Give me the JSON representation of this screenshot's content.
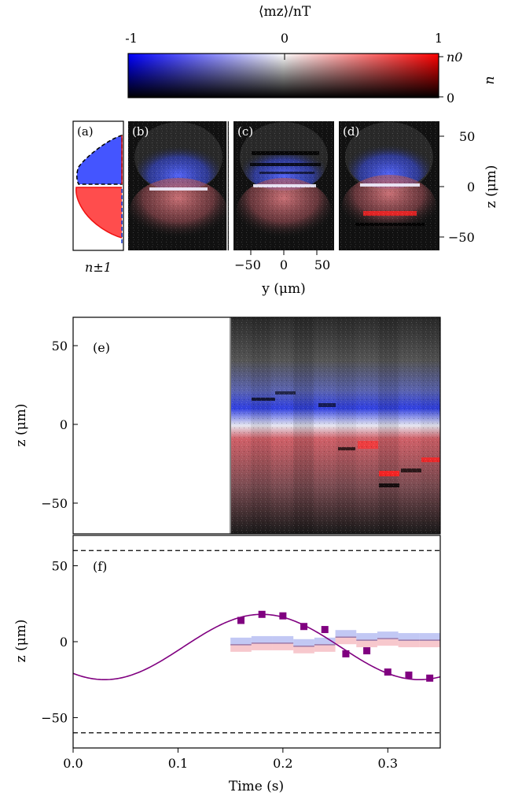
{
  "colorbar": {
    "title": "⟨mz⟩/nT",
    "tick_labels": [
      "-1",
      "0",
      "1"
    ],
    "right_labels": [
      "n0",
      "0"
    ],
    "side_label": "n"
  },
  "top_panels": {
    "labels": [
      "(a)",
      "(b)",
      "(c)",
      "(d)"
    ],
    "a_xlabel": "n±1",
    "y_ticks": [
      "50",
      "0",
      "−50"
    ],
    "y_label": "z (μm)",
    "x_ticks": [
      "−50",
      "0",
      "50"
    ],
    "x_label": "y (μm)"
  },
  "panel_e": {
    "label": "(e)",
    "y_ticks": [
      "50",
      "0",
      "−50"
    ],
    "y_label": "z (μm)"
  },
  "chart_data": {
    "type": "scatter",
    "panel_label": "(f)",
    "xlabel": "Time (s)",
    "ylabel": "z (μm)",
    "xlim": [
      0.0,
      0.35
    ],
    "ylim": [
      -70,
      70
    ],
    "x_ticks": [
      "0.0",
      "0.1",
      "0.2",
      "0.3"
    ],
    "y_ticks": [
      "50",
      "0",
      "−50"
    ],
    "dashed_lines_y": [
      60,
      -60
    ],
    "points": [
      {
        "x": 0.16,
        "y": 14
      },
      {
        "x": 0.18,
        "y": 18
      },
      {
        "x": 0.2,
        "y": 17
      },
      {
        "x": 0.22,
        "y": 10
      },
      {
        "x": 0.24,
        "y": 8
      },
      {
        "x": 0.26,
        "y": -8
      },
      {
        "x": 0.28,
        "y": -6
      },
      {
        "x": 0.3,
        "y": -20
      },
      {
        "x": 0.32,
        "y": -22
      },
      {
        "x": 0.34,
        "y": -24
      }
    ],
    "fit_curve": {
      "amplitude": 21.5,
      "offset": -3.5,
      "period": 0.3,
      "phase_time": 0.18
    },
    "interface_segments": [
      {
        "x0": 0.15,
        "x1": 0.17,
        "y": -2
      },
      {
        "x0": 0.17,
        "x1": 0.19,
        "y": -1
      },
      {
        "x0": 0.19,
        "x1": 0.21,
        "y": -1
      },
      {
        "x0": 0.21,
        "x1": 0.23,
        "y": -3
      },
      {
        "x0": 0.23,
        "x1": 0.25,
        "y": -2
      },
      {
        "x0": 0.25,
        "x1": 0.27,
        "y": 3
      },
      {
        "x0": 0.27,
        "x1": 0.29,
        "y": 1
      },
      {
        "x0": 0.29,
        "x1": 0.31,
        "y": 2
      },
      {
        "x0": 0.31,
        "x1": 0.33,
        "y": 1
      },
      {
        "x0": 0.33,
        "x1": 0.35,
        "y": 1
      }
    ],
    "point_color": "#800080",
    "curve_color": "#800080"
  }
}
